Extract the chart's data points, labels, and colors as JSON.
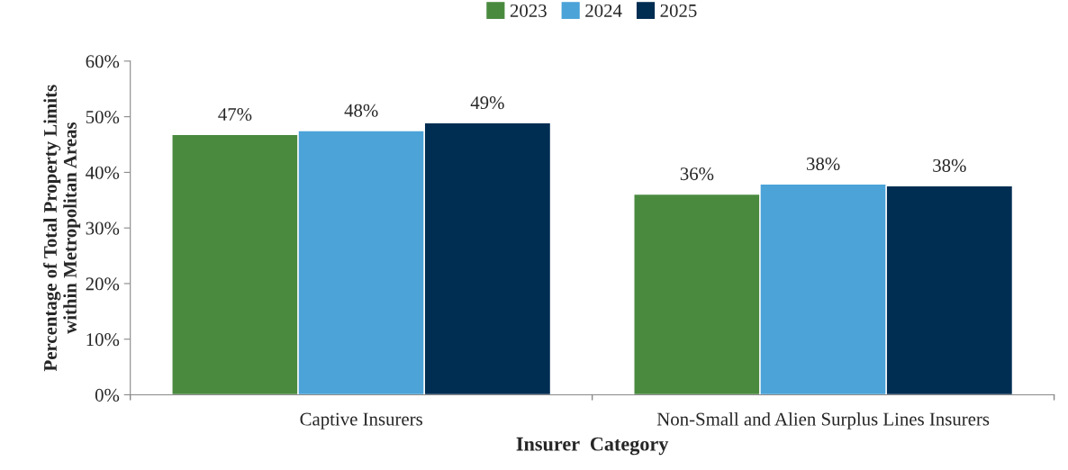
{
  "chart_data": {
    "type": "bar",
    "xlabel": "Insurer  Category",
    "ylabel": "Percentage of Total Property Limits\nwithin Metropolitan Areas",
    "categories": [
      "Captive Insurers",
      "Non-Small and Alien Surplus Lines Insurers"
    ],
    "series": [
      {
        "name": "2023",
        "color": "#4a8a3f",
        "values": [
          46.8,
          36.1
        ],
        "value_labels": [
          "47%",
          "36%"
        ]
      },
      {
        "name": "2024",
        "color": "#4ba3d8",
        "values": [
          47.5,
          37.9
        ],
        "value_labels": [
          "48%",
          "38%"
        ]
      },
      {
        "name": "2025",
        "color": "#002d52",
        "values": [
          48.9,
          37.6
        ],
        "value_labels": [
          "49%",
          "38%"
        ]
      }
    ],
    "ylim": [
      0,
      60
    ],
    "yticks": [
      {
        "value": 0,
        "label": "0%"
      },
      {
        "value": 10,
        "label": "10%"
      },
      {
        "value": 20,
        "label": "20%"
      },
      {
        "value": 30,
        "label": "30%"
      },
      {
        "value": 40,
        "label": "40%"
      },
      {
        "value": 50,
        "label": "50%"
      },
      {
        "value": 60,
        "label": "60%"
      }
    ],
    "grid": false,
    "legend": "top"
  }
}
